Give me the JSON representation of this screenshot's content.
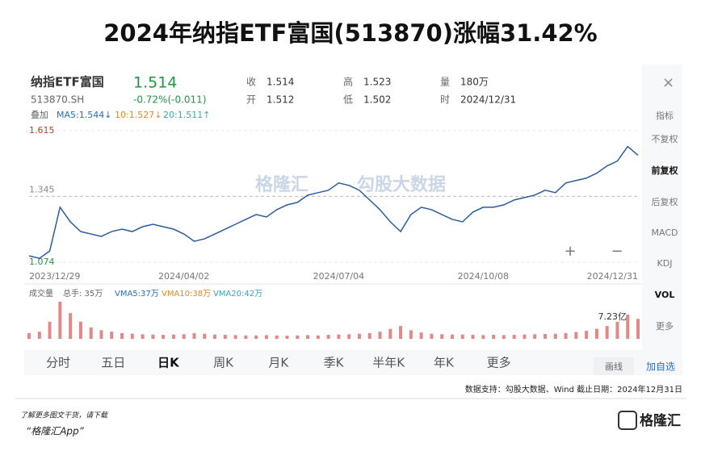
{
  "title": "2024年纳指ETF富国(513870)涨幅31.42%",
  "quote": {
    "name": "纳指ETF富国",
    "code": "513870.SH",
    "price": "1.514",
    "change": "-0.72%(-0.011)",
    "fields": [
      [
        "收",
        "1.514"
      ],
      [
        "开",
        "1.512"
      ],
      [
        "高",
        "1.523"
      ],
      [
        "低",
        "1.502"
      ],
      [
        "量",
        "180万"
      ],
      [
        "时",
        "2024/12/31"
      ]
    ]
  },
  "ma_legend": {
    "label": "叠加",
    "items": [
      "MA5:1.544↓",
      "10:1.527↓",
      "20:1.511↑"
    ]
  },
  "side_menu": [
    "指标",
    "不复权",
    "前复权",
    "后复权",
    "MACD",
    "KDJ",
    "VOL",
    "更多"
  ],
  "tabs": [
    "分时",
    "五日",
    "日K",
    "周K",
    "月K",
    "季K",
    "半年K",
    "年K",
    "更多"
  ],
  "buttons": [
    "画线",
    "加自选"
  ],
  "volume_legend": [
    "成交量",
    "总手: 35万",
    "VMA5:37万",
    "VMA10:38万",
    "VMA20:42万"
  ],
  "watermark": [
    "格隆汇",
    "勾股大数据"
  ],
  "chart_data": [
    {
      "type": "line",
      "color": "#2b5c9e",
      "categories": [
        "2023/12/29",
        null,
        null,
        null,
        null,
        null,
        null,
        null,
        null,
        null,
        null,
        null,
        null,
        null,
        null,
        "2024/04/02",
        null,
        null,
        null,
        null,
        null,
        null,
        null,
        null,
        null,
        null,
        null,
        null,
        null,
        null,
        "2024/07/04",
        null,
        null,
        null,
        null,
        null,
        null,
        null,
        null,
        null,
        null,
        null,
        null,
        null,
        "2024/10/08",
        null,
        null,
        null,
        null,
        null,
        null,
        null,
        null,
        null,
        null,
        null,
        null,
        null,
        null,
        "2024/12/31"
      ],
      "values": [
        1.1,
        1.09,
        1.12,
        1.3,
        1.24,
        1.2,
        1.19,
        1.18,
        1.2,
        1.21,
        1.2,
        1.22,
        1.23,
        1.22,
        1.21,
        1.19,
        1.16,
        1.17,
        1.19,
        1.21,
        1.23,
        1.25,
        1.27,
        1.26,
        1.29,
        1.31,
        1.32,
        1.35,
        1.36,
        1.37,
        1.4,
        1.39,
        1.37,
        1.33,
        1.29,
        1.24,
        1.2,
        1.27,
        1.3,
        1.29,
        1.27,
        1.25,
        1.24,
        1.28,
        1.3,
        1.3,
        1.31,
        1.33,
        1.34,
        1.35,
        1.37,
        1.36,
        1.4,
        1.41,
        1.42,
        1.44,
        1.47,
        1.49,
        1.55,
        1.514
      ],
      "ylim": [
        1.074,
        1.615
      ],
      "yticks": [
        1.615,
        1.345,
        1.074
      ],
      "grid": true
    },
    {
      "type": "bar",
      "color": "#d96b6b",
      "annotation": "7.23亿",
      "values": [
        20,
        25,
        60,
        130,
        90,
        60,
        40,
        30,
        25,
        20,
        18,
        16,
        15,
        14,
        15,
        16,
        20,
        18,
        15,
        14,
        13,
        12,
        12,
        13,
        12,
        11,
        12,
        13,
        12,
        14,
        15,
        16,
        18,
        20,
        25,
        35,
        45,
        30,
        22,
        18,
        16,
        15,
        15,
        14,
        13,
        14,
        13,
        14,
        15,
        16,
        17,
        18,
        20,
        24,
        28,
        35,
        45,
        60,
        85,
        70
      ]
    }
  ],
  "footer": {
    "source": "数据支持：勾股大数据、Wind   截止日期：2024年12月31日",
    "promo": "了解更多图文干货，请下载",
    "app": "“格隆汇App”",
    "brand": "格隆汇"
  }
}
